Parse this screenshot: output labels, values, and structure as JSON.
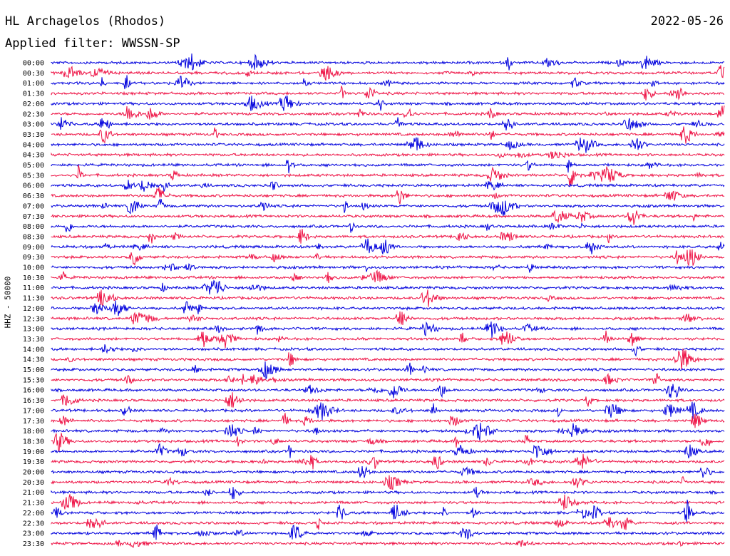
{
  "header": {
    "station": "HL Archagelos (Rhodos)",
    "date": "2022-05-26",
    "filter": "Applied filter: WWSSN-SP"
  },
  "chart_data": {
    "type": "line",
    "chart_kind": "helicorder",
    "ylabel": "HHZ - 50000",
    "grid": false,
    "colors": [
      "#0000dd",
      "#ee1144"
    ],
    "rows": [
      "00:00",
      "00:30",
      "01:00",
      "01:30",
      "02:00",
      "02:30",
      "03:00",
      "03:30",
      "04:00",
      "04:30",
      "05:00",
      "05:30",
      "06:00",
      "06:30",
      "07:00",
      "07:30",
      "08:00",
      "08:30",
      "09:00",
      "09:30",
      "10:00",
      "10:30",
      "11:00",
      "11:30",
      "12:00",
      "12:30",
      "13:00",
      "13:30",
      "14:00",
      "14:30",
      "15:00",
      "15:30",
      "16:00",
      "16:30",
      "17:00",
      "17:30",
      "18:00",
      "18:30",
      "19:00",
      "19:30",
      "20:00",
      "20:30",
      "21:00",
      "21:30",
      "22:00",
      "22:30",
      "23:00",
      "23:30"
    ]
  }
}
